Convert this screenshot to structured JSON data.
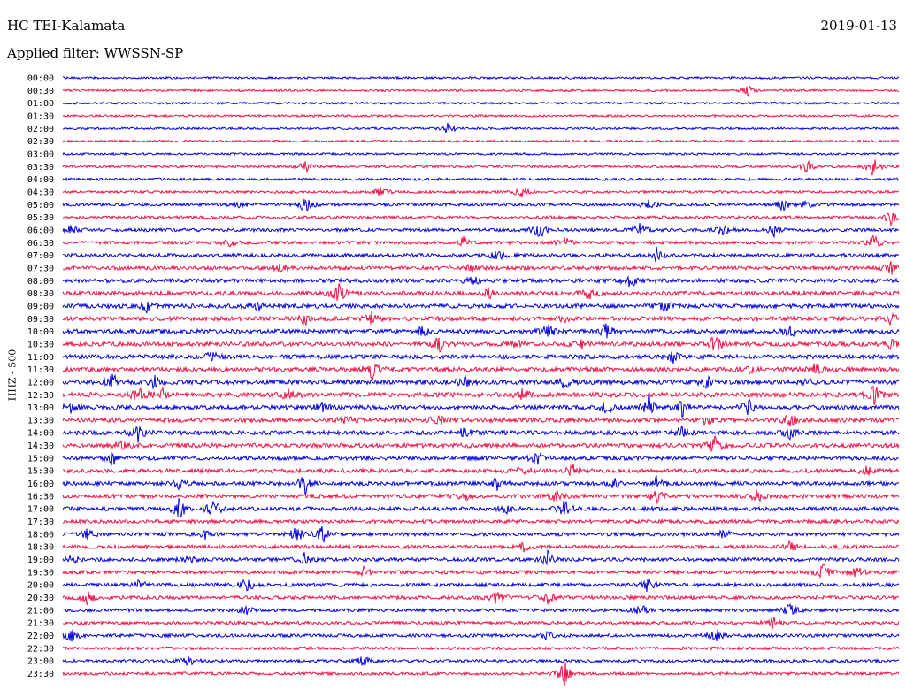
{
  "header": {
    "station": "HC TEI-Kalamata",
    "date": "2019-01-13",
    "filter": "Applied filter: WWSSN-SP"
  },
  "chart_data": {
    "type": "line",
    "title": "HC TEI-Kalamata",
    "ylabel": "HHZ - 500",
    "rows": [
      "00:00",
      "00:30",
      "01:00",
      "01:30",
      "02:00",
      "02:30",
      "03:00",
      "03:30",
      "04:00",
      "04:30",
      "05:00",
      "05:30",
      "06:00",
      "06:30",
      "07:00",
      "07:30",
      "08:00",
      "08:30",
      "09:00",
      "09:30",
      "10:00",
      "10:30",
      "11:00",
      "11:30",
      "12:00",
      "12:30",
      "13:00",
      "13:30",
      "14:00",
      "14:30",
      "15:00",
      "15:30",
      "16:00",
      "16:30",
      "17:00",
      "17:30",
      "18:00",
      "18:30",
      "19:00",
      "19:30",
      "20:00",
      "20:30",
      "21:00",
      "21:30",
      "22:00",
      "22:30",
      "23:00",
      "23:30"
    ],
    "colors": [
      "#0000dd",
      "#ee1144"
    ],
    "noise_amplitude": [
      1.2,
      1.2,
      1.2,
      1.2,
      1.2,
      1.2,
      1.2,
      1.4,
      1.4,
      1.4,
      1.6,
      1.6,
      1.8,
      1.8,
      2.0,
      2.0,
      2.2,
      2.4,
      2.4,
      2.4,
      2.4,
      2.4,
      2.4,
      2.4,
      2.6,
      2.6,
      2.4,
      2.4,
      2.4,
      2.4,
      2.2,
      2.2,
      2.2,
      2.2,
      2.2,
      2.0,
      2.0,
      2.0,
      2.0,
      2.0,
      2.0,
      2.0,
      1.8,
      1.8,
      1.8,
      1.6,
      1.6,
      1.6
    ],
    "events": [
      [],
      [
        [
          0.82,
          6
        ]
      ],
      [],
      [],
      [
        [
          0.46,
          8
        ]
      ],
      [],
      [],
      [
        [
          0.29,
          6
        ],
        [
          0.89,
          7
        ],
        [
          0.97,
          12
        ]
      ],
      [],
      [
        [
          0.38,
          6
        ],
        [
          0.55,
          7
        ]
      ],
      [
        [
          0.21,
          5
        ],
        [
          0.29,
          10
        ],
        [
          0.7,
          9
        ],
        [
          0.86,
          8
        ],
        [
          0.89,
          5
        ]
      ],
      [
        [
          0.99,
          8
        ]
      ],
      [
        [
          0.01,
          6
        ],
        [
          0.57,
          10
        ],
        [
          0.69,
          8
        ],
        [
          0.79,
          6
        ],
        [
          0.85,
          7
        ]
      ],
      [
        [
          0.2,
          5
        ],
        [
          0.48,
          7
        ],
        [
          0.6,
          6
        ],
        [
          0.97,
          8
        ]
      ],
      [
        [
          0.52,
          6
        ],
        [
          0.71,
          9
        ]
      ],
      [
        [
          0.26,
          6
        ],
        [
          0.49,
          5
        ],
        [
          0.99,
          9
        ]
      ],
      [
        [
          0.49,
          6
        ],
        [
          0.68,
          8
        ]
      ],
      [
        [
          0.33,
          12
        ],
        [
          0.51,
          6
        ],
        [
          0.63,
          6
        ]
      ],
      [
        [
          0.1,
          7
        ],
        [
          0.23,
          8
        ],
        [
          0.72,
          6
        ]
      ],
      [
        [
          0.29,
          6
        ],
        [
          0.37,
          9
        ],
        [
          0.6,
          5
        ],
        [
          0.99,
          6
        ]
      ],
      [
        [
          0.43,
          6
        ],
        [
          0.58,
          7
        ],
        [
          0.65,
          8
        ],
        [
          0.87,
          7
        ]
      ],
      [
        [
          0.45,
          8
        ],
        [
          0.54,
          6
        ],
        [
          0.62,
          6
        ],
        [
          0.78,
          11
        ],
        [
          0.99,
          5
        ]
      ],
      [
        [
          0.18,
          8
        ],
        [
          0.73,
          6
        ]
      ],
      [
        [
          0.37,
          11
        ],
        [
          0.82,
          6
        ],
        [
          0.9,
          8
        ]
      ],
      [
        [
          0.06,
          11
        ],
        [
          0.11,
          7
        ],
        [
          0.48,
          6
        ],
        [
          0.6,
          7
        ],
        [
          0.77,
          6
        ],
        [
          0.89,
          5
        ]
      ],
      [
        [
          0.09,
          9
        ],
        [
          0.12,
          8
        ],
        [
          0.27,
          6
        ],
        [
          0.55,
          7
        ],
        [
          0.97,
          12
        ]
      ],
      [
        [
          0.01,
          7
        ],
        [
          0.31,
          6
        ],
        [
          0.65,
          8
        ],
        [
          0.7,
          13
        ],
        [
          0.74,
          11
        ],
        [
          0.82,
          8
        ]
      ],
      [
        [
          0.34,
          6
        ],
        [
          0.45,
          6
        ],
        [
          0.77,
          6
        ],
        [
          0.87,
          8
        ]
      ],
      [
        [
          0.09,
          9
        ],
        [
          0.48,
          6
        ],
        [
          0.74,
          9
        ],
        [
          0.87,
          6
        ]
      ],
      [
        [
          0.07,
          6
        ],
        [
          0.78,
          11
        ]
      ],
      [
        [
          0.06,
          9
        ],
        [
          0.57,
          9
        ]
      ],
      [
        [
          0.55,
          5
        ],
        [
          0.61,
          7
        ],
        [
          0.96,
          7
        ]
      ],
      [
        [
          0.14,
          6
        ],
        [
          0.29,
          12
        ],
        [
          0.52,
          8
        ],
        [
          0.66,
          6
        ],
        [
          0.71,
          8
        ]
      ],
      [
        [
          0.48,
          6
        ],
        [
          0.59,
          6
        ],
        [
          0.71,
          8
        ],
        [
          0.83,
          7
        ]
      ],
      [
        [
          0.14,
          13
        ],
        [
          0.18,
          12
        ],
        [
          0.53,
          6
        ],
        [
          0.6,
          9
        ]
      ],
      [],
      [
        [
          0.03,
          7
        ],
        [
          0.17,
          6
        ],
        [
          0.28,
          9
        ],
        [
          0.31,
          10
        ],
        [
          0.79,
          7
        ]
      ],
      [
        [
          0.55,
          6
        ],
        [
          0.87,
          6
        ]
      ],
      [
        [
          0.01,
          7
        ],
        [
          0.15,
          6
        ],
        [
          0.29,
          8
        ],
        [
          0.58,
          9
        ]
      ],
      [
        [
          0.36,
          6
        ],
        [
          0.91,
          8
        ],
        [
          0.95,
          6
        ]
      ],
      [
        [
          0.09,
          6
        ],
        [
          0.22,
          8
        ],
        [
          0.7,
          8
        ]
      ],
      [
        [
          0.03,
          7
        ],
        [
          0.52,
          9
        ],
        [
          0.58,
          8
        ]
      ],
      [
        [
          0.22,
          6
        ],
        [
          0.69,
          8
        ],
        [
          0.87,
          8
        ]
      ],
      [
        [
          0.85,
          8
        ]
      ],
      [
        [
          0.01,
          9
        ],
        [
          0.58,
          4
        ],
        [
          0.78,
          8
        ]
      ],
      [],
      [
        [
          0.15,
          8
        ],
        [
          0.36,
          6
        ]
      ],
      [
        [
          0.6,
          14
        ]
      ]
    ]
  }
}
